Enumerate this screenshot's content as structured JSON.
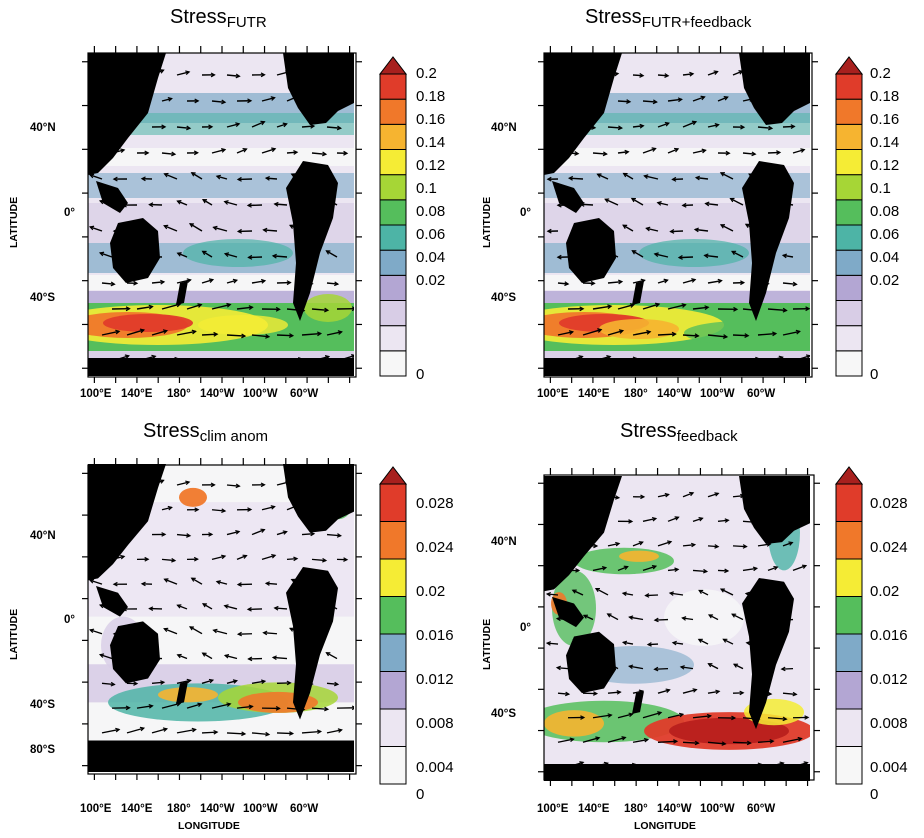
{
  "colorscale": {
    "colors": [
      "#f7f7f7",
      "#ece6f2",
      "#d8cde6",
      "#b3a6d3",
      "#7faac8",
      "#4db4a6",
      "#55be5c",
      "#a6d636",
      "#f5ec35",
      "#f6b430",
      "#f0782a",
      "#e03c2a",
      "#b8201e"
    ],
    "over_color": "#a8201e"
  },
  "panels": [
    {
      "id": "futr",
      "title_main": "Stress",
      "title_sub": "FUTR",
      "lat_labels": [
        "40°N",
        "0°",
        "40°S"
      ],
      "lon_labels": [
        "100°E",
        "140°E",
        "180°",
        "140°W",
        "100°W",
        "60°W"
      ],
      "ylabel": "LATITUDE",
      "xlabel": "",
      "cbar_labels": [
        "0.2",
        "0.18",
        "0.16",
        "0.14",
        "0.12",
        "0.1",
        "0.08",
        "0.06",
        "0.04",
        "0.02",
        "0"
      ]
    },
    {
      "id": "futr_feedback",
      "title_main": "Stress",
      "title_sub": "FUTR+feedback",
      "lat_labels": [
        "40°N",
        "0°",
        "40°S"
      ],
      "lon_labels": [
        "100°E",
        "140°E",
        "180°",
        "140°W",
        "100°W",
        "60°W"
      ],
      "ylabel": "LATITUDE",
      "xlabel": "",
      "cbar_labels": [
        "0.2",
        "0.18",
        "0.16",
        "0.14",
        "0.12",
        "0.1",
        "0.08",
        "0.06",
        "0.04",
        "0.02",
        "0"
      ]
    },
    {
      "id": "clim_anom",
      "title_main": "Stress",
      "title_sub": "clim anom",
      "lat_labels": [
        "40°N",
        "0°",
        "40°S",
        "80°S"
      ],
      "lon_labels": [
        "100°E",
        "140°E",
        "180°",
        "140°W",
        "100°W",
        "60°W"
      ],
      "ylabel": "LATITUDE",
      "xlabel": "LONGITUDE",
      "cbar_labels": [
        "0.028",
        "0.024",
        "0.02",
        "0.016",
        "0.012",
        "0.008",
        "0.004",
        "0"
      ]
    },
    {
      "id": "feedback",
      "title_main": "Stress",
      "title_sub": "feedback",
      "lat_labels": [
        "40°N",
        "0°",
        "40°S"
      ],
      "lon_labels": [
        "100°E",
        "140°E",
        "180°",
        "140°W",
        "100°W",
        "60°W"
      ],
      "ylabel": "LATITUDE",
      "xlabel": "LONGITUDE",
      "cbar_labels": [
        "0.028",
        "0.024",
        "0.02",
        "0.016",
        "0.012",
        "0.008",
        "0.004",
        "0"
      ]
    }
  ]
}
